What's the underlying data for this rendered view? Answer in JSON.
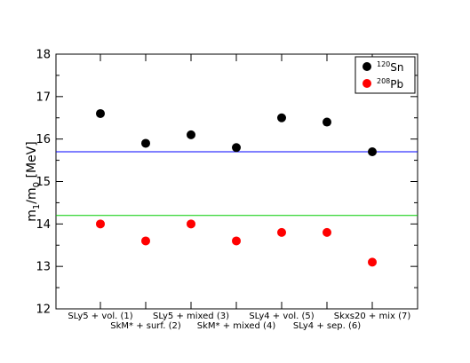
{
  "chart_data": {
    "type": "scatter",
    "title": "",
    "xlabel": "",
    "ylabel": {
      "main": "m",
      "sub1": "1",
      "slash": "/m",
      "sub2": "0",
      "unit": " [MeV]"
    },
    "ylim": [
      12,
      18
    ],
    "yticks": [
      12,
      13,
      14,
      15,
      16,
      17,
      18
    ],
    "grid": false,
    "legend_position": "top-right",
    "categories": [
      {
        "label": "SLy5 + vol. (1)",
        "row": "upper"
      },
      {
        "label": "SkM* + surf. (2)",
        "row": "lower"
      },
      {
        "label": "SLy5 + mixed (3)",
        "row": "upper"
      },
      {
        "label": "SkM* + mixed (4)",
        "row": "lower"
      },
      {
        "label": "SLy4 + vol. (5)",
        "row": "upper"
      },
      {
        "label": "SLy4 + sep. (6)",
        "row": "lower"
      },
      {
        "label": "Skxs20 + mix (7)",
        "row": "upper"
      }
    ],
    "series": [
      {
        "name_mass": "120",
        "name_symbol": "Sn",
        "color": "#000000",
        "values": [
          16.6,
          15.9,
          16.1,
          15.8,
          16.5,
          16.4,
          15.7
        ]
      },
      {
        "name_mass": "208",
        "name_symbol": "Pb",
        "color": "#ff0000",
        "values": [
          14.0,
          13.6,
          14.0,
          13.6,
          13.8,
          13.8,
          13.1
        ]
      }
    ],
    "reference_lines": [
      {
        "y": 15.7,
        "color": "#0000ff"
      },
      {
        "y": 14.2,
        "color": "#00cc00"
      }
    ]
  }
}
